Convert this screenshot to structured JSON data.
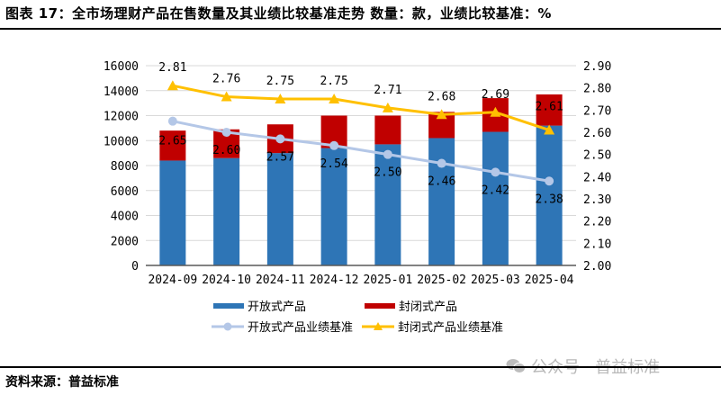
{
  "header": {
    "title": "图表 17：全市场理财产品在售数量及其业绩比较基准走势   数量：款，业绩比较基准：%"
  },
  "footer": {
    "source": "资料来源：普益标准",
    "watermark": "公众号 · 普益标准",
    "watermark_icon": "wechat-icon"
  },
  "colors": {
    "open_bar": "#2E75B6",
    "closed_bar": "#C00000",
    "open_line": "#B4C7E7",
    "closed_line": "#FFC000",
    "grid": "#D9D9D9",
    "axis": "#595959"
  },
  "chart_data": {
    "type": "bar",
    "subtype": "stacked-bar-with-lines",
    "title": "全市场理财产品在售数量及其业绩比较基准走势",
    "categories": [
      "2024-09",
      "2024-10",
      "2024-11",
      "2024-12",
      "2025-01",
      "2025-02",
      "2025-03",
      "2025-04"
    ],
    "left_axis": {
      "label": "数量：款",
      "ylim": [
        0,
        16000
      ],
      "ticks": [
        "0",
        "2000",
        "4000",
        "6000",
        "8000",
        "10000",
        "12000",
        "14000",
        "16000"
      ]
    },
    "right_axis": {
      "label": "业绩比较基准：%",
      "ylim": [
        2.0,
        2.9
      ],
      "ticks": [
        "2.00",
        "2.10",
        "2.20",
        "2.30",
        "2.40",
        "2.50",
        "2.60",
        "2.70",
        "2.80",
        "2.90"
      ]
    },
    "grid": true,
    "legend_position": "bottom",
    "series": [
      {
        "name": "开放式产品",
        "type": "bar",
        "axis": "left",
        "values": [
          8400,
          8600,
          9000,
          9400,
          9700,
          10200,
          10700,
          11200
        ]
      },
      {
        "name": "封闭式产品",
        "type": "bar",
        "axis": "left",
        "stacked_on": "开放式产品",
        "values": [
          2400,
          2300,
          2300,
          2600,
          2300,
          2100,
          2700,
          2500
        ]
      },
      {
        "name": "开放式产品业绩基准",
        "type": "line",
        "marker": "circle",
        "axis": "right",
        "values": [
          2.65,
          2.6,
          2.57,
          2.54,
          2.5,
          2.46,
          2.42,
          2.38
        ],
        "labels": [
          "2.65",
          "2.60",
          "2.57",
          "2.54",
          "2.50",
          "2.46",
          "2.42",
          "2.38"
        ]
      },
      {
        "name": "封闭式产品业绩基准",
        "type": "line",
        "marker": "triangle",
        "axis": "right",
        "values": [
          2.81,
          2.76,
          2.75,
          2.75,
          2.71,
          2.68,
          2.69,
          2.61
        ],
        "labels": [
          "2.81",
          "2.76",
          "2.75",
          "2.75",
          "2.71",
          "2.68",
          "2.69",
          "2.61"
        ]
      }
    ]
  },
  "legend": [
    {
      "label": "开放式产品",
      "kind": "bar",
      "series": 0
    },
    {
      "label": "封闭式产品",
      "kind": "bar",
      "series": 1
    },
    {
      "label": "开放式产品业绩基准",
      "kind": "line-circle",
      "series": 2
    },
    {
      "label": "封闭式产品业绩基准",
      "kind": "line-triangle",
      "series": 3
    }
  ]
}
